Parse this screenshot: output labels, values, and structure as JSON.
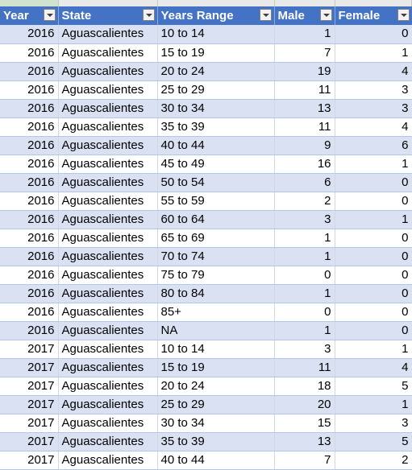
{
  "header": {
    "year": "Year",
    "state": "State",
    "range": "Years Range",
    "male": "Male",
    "female": "Female"
  },
  "rows": [
    {
      "year": "2016",
      "state": "Aguascalientes",
      "range": "10 to 14",
      "male": "1",
      "female": "0"
    },
    {
      "year": "2016",
      "state": "Aguascalientes",
      "range": "15 to 19",
      "male": "7",
      "female": "1"
    },
    {
      "year": "2016",
      "state": "Aguascalientes",
      "range": "20 to 24",
      "male": "19",
      "female": "4"
    },
    {
      "year": "2016",
      "state": "Aguascalientes",
      "range": "25 to 29",
      "male": "11",
      "female": "3"
    },
    {
      "year": "2016",
      "state": "Aguascalientes",
      "range": "30 to 34",
      "male": "13",
      "female": "3"
    },
    {
      "year": "2016",
      "state": "Aguascalientes",
      "range": "35 to 39",
      "male": "11",
      "female": "4"
    },
    {
      "year": "2016",
      "state": "Aguascalientes",
      "range": "40 to 44",
      "male": "9",
      "female": "6"
    },
    {
      "year": "2016",
      "state": "Aguascalientes",
      "range": "45 to 49",
      "male": "16",
      "female": "1"
    },
    {
      "year": "2016",
      "state": "Aguascalientes",
      "range": "50 to 54",
      "male": "6",
      "female": "0"
    },
    {
      "year": "2016",
      "state": "Aguascalientes",
      "range": "55 to 59",
      "male": "2",
      "female": "0"
    },
    {
      "year": "2016",
      "state": "Aguascalientes",
      "range": "60 to 64",
      "male": "3",
      "female": "1"
    },
    {
      "year": "2016",
      "state": "Aguascalientes",
      "range": "65 to 69",
      "male": "1",
      "female": "0"
    },
    {
      "year": "2016",
      "state": "Aguascalientes",
      "range": "70 to 74",
      "male": "1",
      "female": "0"
    },
    {
      "year": "2016",
      "state": "Aguascalientes",
      "range": "75 to 79",
      "male": "0",
      "female": "0"
    },
    {
      "year": "2016",
      "state": "Aguascalientes",
      "range": "80 to 84",
      "male": "1",
      "female": "0"
    },
    {
      "year": "2016",
      "state": "Aguascalientes",
      "range": "85+",
      "male": "0",
      "female": "0"
    },
    {
      "year": "2016",
      "state": "Aguascalientes",
      "range": "NA",
      "male": "1",
      "female": "0"
    },
    {
      "year": "2017",
      "state": "Aguascalientes",
      "range": "10 to 14",
      "male": "3",
      "female": "1"
    },
    {
      "year": "2017",
      "state": "Aguascalientes",
      "range": "15 to 19",
      "male": "11",
      "female": "4"
    },
    {
      "year": "2017",
      "state": "Aguascalientes",
      "range": "20 to 24",
      "male": "18",
      "female": "5"
    },
    {
      "year": "2017",
      "state": "Aguascalientes",
      "range": "25 to 29",
      "male": "20",
      "female": "1"
    },
    {
      "year": "2017",
      "state": "Aguascalientes",
      "range": "30 to 34",
      "male": "15",
      "female": "3"
    },
    {
      "year": "2017",
      "state": "Aguascalientes",
      "range": "35 to 39",
      "male": "13",
      "female": "5"
    },
    {
      "year": "2017",
      "state": "Aguascalientes",
      "range": "40 to 44",
      "male": "7",
      "female": "2"
    }
  ]
}
